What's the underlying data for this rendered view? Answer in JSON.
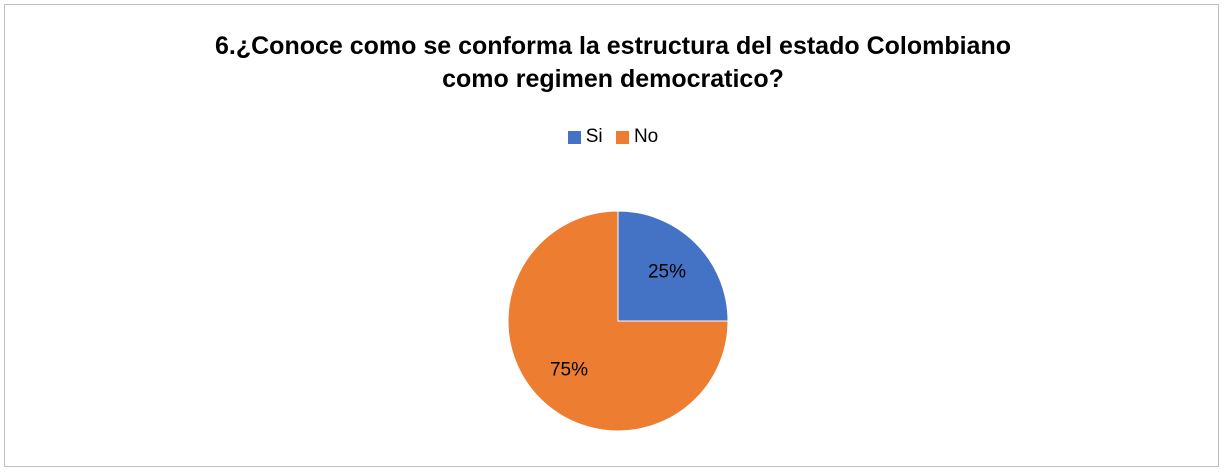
{
  "chart_data": {
    "type": "pie",
    "title_lines": [
      "6.¿Conoce como se conforma la estructura del estado Colombiano",
      "como regimen democratico?"
    ],
    "categories": [
      "Si",
      "No"
    ],
    "values": [
      25,
      75
    ],
    "data_labels": [
      "25%",
      "75%"
    ],
    "colors": [
      "#4472C4",
      "#ED7D31"
    ],
    "legend_position": "top"
  }
}
